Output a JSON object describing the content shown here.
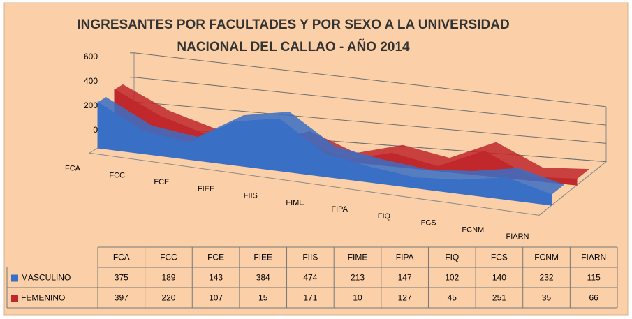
{
  "chart_data": {
    "type": "area3d",
    "title": [
      "INGRESANTES POR FACULTADES Y POR SEXO A LA UNIVERSIDAD",
      "NACIONAL DEL CALLAO - AÑO 2014"
    ],
    "categories": [
      "FCA",
      "FCC",
      "FCE",
      "FIEE",
      "FIIS",
      "FIME",
      "FIPA",
      "FIQ",
      "FCS",
      "FCNM",
      "FIARN"
    ],
    "series": [
      {
        "name": "MASCULINO",
        "color": "#3a6fc6",
        "values": [
          375,
          189,
          143,
          384,
          474,
          213,
          147,
          102,
          140,
          232,
          115
        ]
      },
      {
        "name": "FEMENINO",
        "color": "#c0282c",
        "values": [
          397,
          220,
          107,
          15,
          171,
          10,
          127,
          45,
          251,
          35,
          66
        ]
      }
    ],
    "ylim": [
      0,
      600
    ],
    "yticks": [
      0,
      200,
      400,
      600
    ],
    "grid": true
  }
}
